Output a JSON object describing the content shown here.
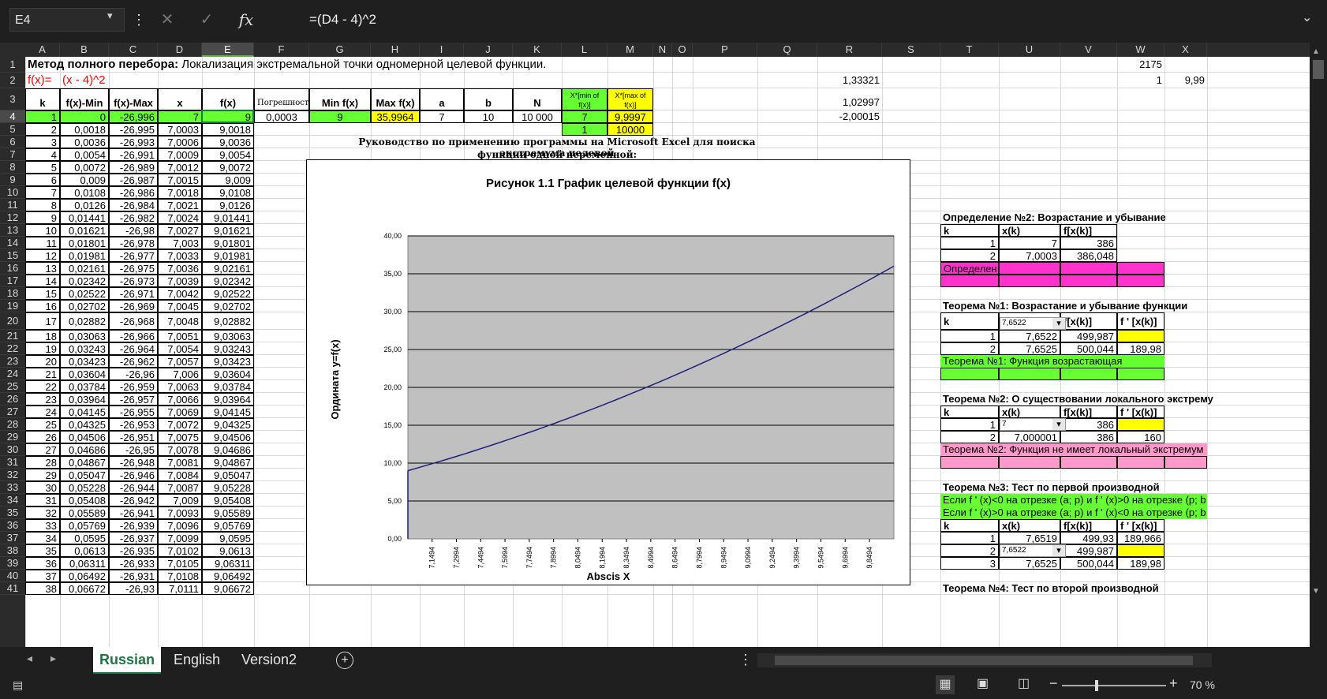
{
  "formula_bar": {
    "name_box": "E4",
    "formula": "=(D4 - 4)^2",
    "fx": "fx"
  },
  "columns": [
    "A",
    "B",
    "C",
    "D",
    "E",
    "F",
    "G",
    "H",
    "I",
    "J",
    "K",
    "L",
    "M",
    "N",
    "O",
    "P",
    "Q",
    "R",
    "S",
    "T",
    "U",
    "V",
    "W",
    "X"
  ],
  "rows": [
    "1",
    "2",
    "3",
    "4",
    "5",
    "6",
    "7",
    "8",
    "9",
    "10",
    "11",
    "12",
    "13",
    "14",
    "15",
    "16",
    "17",
    "18",
    "19",
    "20",
    "21",
    "22",
    "23",
    "24",
    "25",
    "26",
    "27",
    "28",
    "29",
    "30",
    "31",
    "32",
    "33",
    "34",
    "35",
    "36",
    "37",
    "38",
    "39",
    "40",
    "41"
  ],
  "sheet": {
    "title_bold": "Метод полного перебора:",
    "title_rest": " Локализация экстремальной точки одномерной целевой функции.",
    "fx_label": "f(x)=",
    "fx_expr": "(x - 4)^2",
    "w1": "2175",
    "w2": "1",
    "x2": "9,99",
    "r2": "1,33321",
    "r3": "1,02997",
    "r4": "-2,00015",
    "headers": [
      "k",
      "f(x)-Min",
      "f(x)-Max",
      "x",
      "f(x)",
      "Погрешность",
      "Min f(x)",
      "Max f(x)",
      "a",
      "b",
      "N",
      "X*[min of f(x)]",
      "X*[max of f(x)]"
    ],
    "row4_extra": {
      "pogr": "0,0003",
      "minf": "9",
      "maxf": "35,9964",
      "a": "7",
      "b": "10",
      "N": "10 000",
      "xmin": "7",
      "xmax": "9,9997"
    },
    "row5_extra": {
      "l": "1",
      "m": "10000"
    },
    "data_rows": [
      [
        "1",
        "0",
        "-26,996",
        "7",
        "9"
      ],
      [
        "2",
        "0,0018",
        "-26,995",
        "7,0003",
        "9,0018"
      ],
      [
        "3",
        "0,0036",
        "-26,993",
        "7,0006",
        "9,0036"
      ],
      [
        "4",
        "0,0054",
        "-26,991",
        "7,0009",
        "9,0054"
      ],
      [
        "5",
        "0,0072",
        "-26,989",
        "7,0012",
        "9,0072"
      ],
      [
        "6",
        "0,009",
        "-26,987",
        "7,0015",
        "9,009"
      ],
      [
        "7",
        "0,0108",
        "-26,986",
        "7,0018",
        "9,0108"
      ],
      [
        "8",
        "0,0126",
        "-26,984",
        "7,0021",
        "9,0126"
      ],
      [
        "9",
        "0,01441",
        "-26,982",
        "7,0024",
        "9,01441"
      ],
      [
        "10",
        "0,01621",
        "-26,98",
        "7,0027",
        "9,01621"
      ],
      [
        "11",
        "0,01801",
        "-26,978",
        "7,003",
        "9,01801"
      ],
      [
        "12",
        "0,01981",
        "-26,977",
        "7,0033",
        "9,01981"
      ],
      [
        "13",
        "0,02161",
        "-26,975",
        "7,0036",
        "9,02161"
      ],
      [
        "14",
        "0,02342",
        "-26,973",
        "7,0039",
        "9,02342"
      ],
      [
        "15",
        "0,02522",
        "-26,971",
        "7,0042",
        "9,02522"
      ],
      [
        "16",
        "0,02702",
        "-26,969",
        "7,0045",
        "9,02702"
      ],
      [
        "17",
        "0,02882",
        "-26,968",
        "7,0048",
        "9,02882"
      ],
      [
        "18",
        "0,03063",
        "-26,966",
        "7,0051",
        "9,03063"
      ],
      [
        "19",
        "0,03243",
        "-26,964",
        "7,0054",
        "9,03243"
      ],
      [
        "20",
        "0,03423",
        "-26,962",
        "7,0057",
        "9,03423"
      ],
      [
        "21",
        "0,03604",
        "-26,96",
        "7,006",
        "9,03604"
      ],
      [
        "22",
        "0,03784",
        "-26,959",
        "7,0063",
        "9,03784"
      ],
      [
        "23",
        "0,03964",
        "-26,957",
        "7,0066",
        "9,03964"
      ],
      [
        "24",
        "0,04145",
        "-26,955",
        "7,0069",
        "9,04145"
      ],
      [
        "25",
        "0,04325",
        "-26,953",
        "7,0072",
        "9,04325"
      ],
      [
        "26",
        "0,04506",
        "-26,951",
        "7,0075",
        "9,04506"
      ],
      [
        "27",
        "0,04686",
        "-26,95",
        "7,0078",
        "9,04686"
      ],
      [
        "28",
        "0,04867",
        "-26,948",
        "7,0081",
        "9,04867"
      ],
      [
        "29",
        "0,05047",
        "-26,946",
        "7,0084",
        "9,05047"
      ],
      [
        "30",
        "0,05228",
        "-26,944",
        "7,0087",
        "9,05228"
      ],
      [
        "31",
        "0,05408",
        "-26,942",
        "7,009",
        "9,05408"
      ],
      [
        "32",
        "0,05589",
        "-26,941",
        "7,0093",
        "9,05589"
      ],
      [
        "33",
        "0,05769",
        "-26,939",
        "7,0096",
        "9,05769"
      ],
      [
        "34",
        "0,0595",
        "-26,937",
        "7,0099",
        "9,0595"
      ],
      [
        "35",
        "0,0613",
        "-26,935",
        "7,0102",
        "9,0613"
      ],
      [
        "36",
        "0,06311",
        "-26,933",
        "7,0105",
        "9,06311"
      ],
      [
        "37",
        "0,06492",
        "-26,931",
        "7,0108",
        "9,06492"
      ],
      [
        "38",
        "0,06672",
        "-26,93",
        "7,0111",
        "9,06672"
      ]
    ],
    "guide_line1": "Руководство по применению программы на Microsoft Excel для поиска экстремума целевой",
    "guide_line2": "функции одной переменной:"
  },
  "panel": {
    "def2_title": "Определение №2: Возрастание и убывание",
    "def2_head": [
      "k",
      "x(k)",
      "f[x(k)]"
    ],
    "def2_rows": [
      [
        "1",
        "7",
        "386"
      ],
      [
        "2",
        "7,0003",
        "386,048"
      ]
    ],
    "def2_result": "Определен",
    "th1_title": "Теорема №1: Возрастание и убывание функции",
    "th1_head": [
      "k",
      "x(k)",
      "f[x(k)]",
      "f ' [x(k)]"
    ],
    "th1_dropdown": "7,6522",
    "th1_rows": [
      [
        "1",
        "7,6522",
        "499,987",
        ""
      ],
      [
        "2",
        "7,6525",
        "500,044",
        "189,98"
      ]
    ],
    "th1_result": "Теорема №1: Функция возрастающая",
    "th2_title": "Теорема №2: О существовании локального экстрему",
    "th2_head": [
      "k",
      "x(k)",
      "f[x(k)]",
      "f ' [x(k)]"
    ],
    "th2_dropdown": "7",
    "th2_rows": [
      [
        "1",
        "",
        "386",
        ""
      ],
      [
        "2",
        "7,000001",
        "386",
        "160"
      ]
    ],
    "th2_result": "Теорема №2: Функция не имеет локальный экстремум",
    "th3_title": "Теорема №3: Тест по первой производной",
    "th3_line1": "Если f ' (x)<0 на отрезке (a; p) и  f ' (x)>0 на отрезке (p; b",
    "th3_line2": "Если f ' (x)>0 на отрезке (a; p) и  f ' (x)<0 на отрезке (p; b",
    "th3_head": [
      "k",
      "x(k)",
      "f[x(k)]",
      "f ' [x(k)]"
    ],
    "th3_dropdown": "7,6522",
    "th3_rows": [
      [
        "1",
        "7,6519",
        "499,93",
        "189,966"
      ],
      [
        "2",
        "",
        "499,987",
        ""
      ],
      [
        "3",
        "7,6525",
        "500,044",
        "189,98"
      ]
    ],
    "th4_title": "Теорема №4: Тест по второй производной"
  },
  "chart_data": {
    "type": "line",
    "title": "Рисунок 1.1 График целевой функции f(x)",
    "xlabel": "Abscis X",
    "ylabel": "Ордината y=f(x)",
    "ylim": [
      0,
      40
    ],
    "yticks": [
      "0,00",
      "5,00",
      "10,00",
      "15,00",
      "20,00",
      "25,00",
      "30,00",
      "35,00",
      "40,00"
    ],
    "xticks": [
      "7,1494",
      "7,2994",
      "7,4494",
      "7,5994",
      "7,7494",
      "7,8994",
      "8,0494",
      "8,1994",
      "8,3494",
      "8,4994",
      "8,6494",
      "8,7994",
      "8,9494",
      "9,0994",
      "9,2494",
      "9,3994",
      "9,5494",
      "9,6994",
      "9,8494"
    ],
    "x_range": [
      7.0,
      10.0
    ],
    "series": [
      {
        "values_fn": "(x-4)^2",
        "x": [
          7.0,
          7.5,
          8.0,
          8.5,
          9.0,
          9.5,
          10.0
        ],
        "y": [
          9,
          12.25,
          16,
          20.25,
          25,
          30.25,
          36
        ]
      }
    ],
    "grid": true,
    "plot_bg": "#c0c0c0",
    "line_color": "#1f1f7a"
  },
  "tabs": [
    "Russian",
    "English",
    "Version2"
  ],
  "active_tab": "Russian",
  "status": {
    "zoom": "70 %"
  },
  "colors": {
    "green": "#66ff33",
    "yellow": "#ffff00",
    "magenta": "#ff33cc",
    "pink": "#ff99cc",
    "red_text": "#ff0000"
  }
}
